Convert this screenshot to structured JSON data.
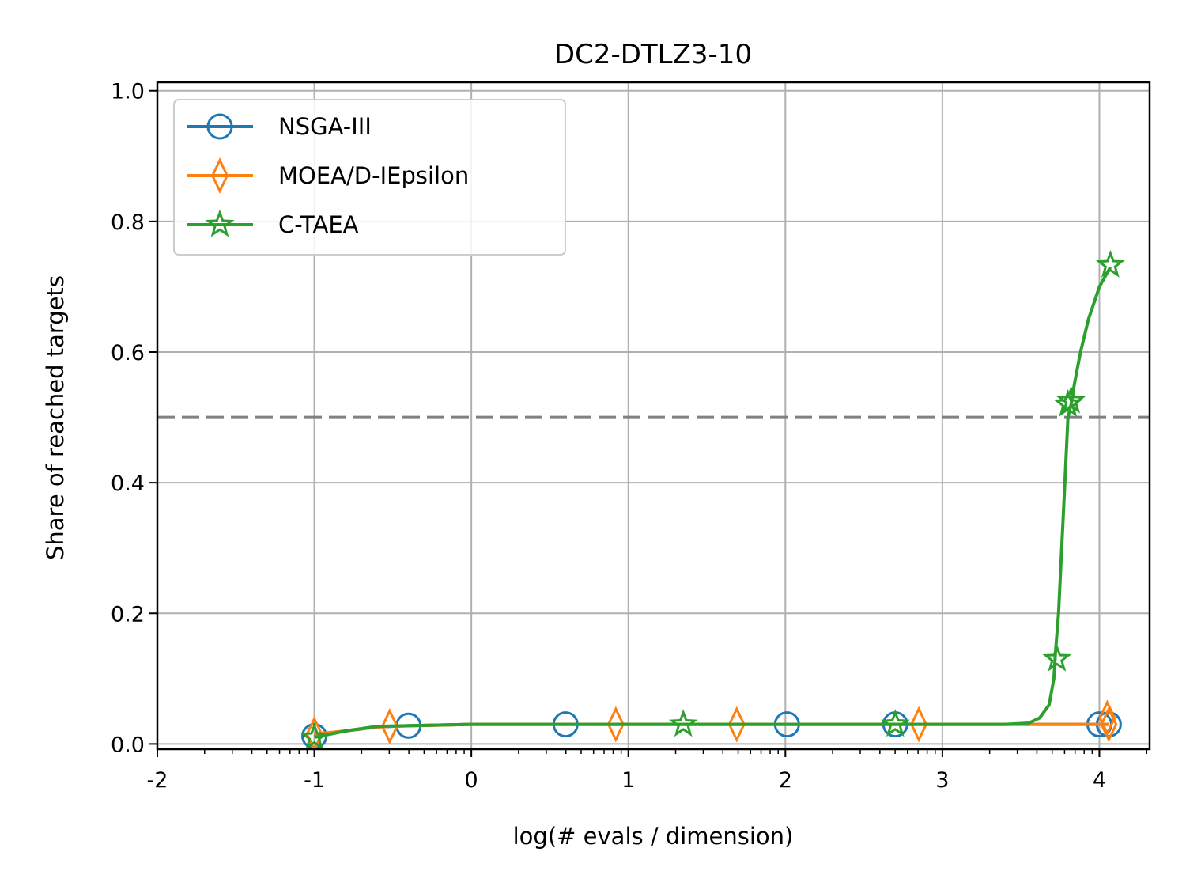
{
  "chart_data": {
    "type": "line",
    "title": "DC2-DTLZ3-10",
    "xlabel": "log(# evals / dimension)",
    "ylabel": "Share of reached targets",
    "xlim": [
      -2,
      4.32
    ],
    "ylim": [
      -0.008,
      1.013
    ],
    "xticks": [
      -2,
      -1,
      0,
      1,
      2,
      3,
      4
    ],
    "xtick_labels": [
      "-2",
      "-1",
      "0",
      "1",
      "2",
      "3",
      "4"
    ],
    "yticks": [
      0.0,
      0.2,
      0.4,
      0.6,
      0.8,
      1.0
    ],
    "ytick_labels": [
      "0.0",
      "0.2",
      "0.4",
      "0.6",
      "0.8",
      "1.0"
    ],
    "grid": true,
    "legend_position": "top-left",
    "reference_line": {
      "y": 0.5,
      "style": "dashed",
      "color": "#808080"
    },
    "series": [
      {
        "name": "NSGA-III",
        "color": "#1f77b4",
        "marker": "circle",
        "x": [
          -1.0,
          -0.8,
          -0.6,
          -0.4,
          0.0,
          0.6,
          1.0,
          2.0,
          2.7,
          3.0,
          3.5,
          4.0,
          4.06
        ],
        "y": [
          0.012,
          0.02,
          0.026,
          0.028,
          0.03,
          0.03,
          0.03,
          0.03,
          0.03,
          0.03,
          0.03,
          0.03,
          0.03
        ],
        "markers_x": [
          -1.0,
          -0.4,
          0.6,
          2.01,
          2.7,
          4.0,
          4.06
        ],
        "markers_y": [
          0.012,
          0.028,
          0.03,
          0.03,
          0.03,
          0.03,
          0.03
        ]
      },
      {
        "name": "MOEA/D-IEpsilon",
        "color": "#ff7f0e",
        "marker": "thin_diamond",
        "x": [
          -1.0,
          -0.8,
          -0.6,
          -0.52,
          0.0,
          0.92,
          1.69,
          2.0,
          2.85,
          3.5,
          4.0,
          4.06
        ],
        "y": [
          0.015,
          0.02,
          0.026,
          0.027,
          0.03,
          0.03,
          0.03,
          0.03,
          0.03,
          0.03,
          0.03,
          0.03
        ],
        "markers_x": [
          -1.0,
          -0.52,
          0.92,
          1.69,
          2.85,
          4.05,
          4.06
        ],
        "markers_y": [
          0.015,
          0.027,
          0.03,
          0.03,
          0.03,
          0.04,
          0.03
        ]
      },
      {
        "name": "C-TAEA",
        "color": "#2ca02c",
        "marker": "star",
        "x": [
          -1.0,
          -0.8,
          -0.6,
          0.0,
          1.35,
          2.0,
          2.7,
          3.4,
          3.55,
          3.62,
          3.68,
          3.71,
          3.72,
          3.74,
          3.76,
          3.78,
          3.8,
          3.82,
          3.84,
          3.88,
          3.93,
          4.0,
          4.07
        ],
        "y": [
          0.01,
          0.02,
          0.027,
          0.03,
          0.03,
          0.03,
          0.03,
          0.03,
          0.032,
          0.04,
          0.06,
          0.1,
          0.14,
          0.2,
          0.3,
          0.4,
          0.5,
          0.52,
          0.55,
          0.6,
          0.65,
          0.7,
          0.73
        ],
        "markers_x": [
          -1.0,
          1.35,
          2.7,
          3.73,
          3.8,
          3.82,
          4.07
        ],
        "markers_y": [
          0.01,
          0.03,
          0.03,
          0.13,
          0.52,
          0.525,
          0.733
        ]
      }
    ]
  }
}
